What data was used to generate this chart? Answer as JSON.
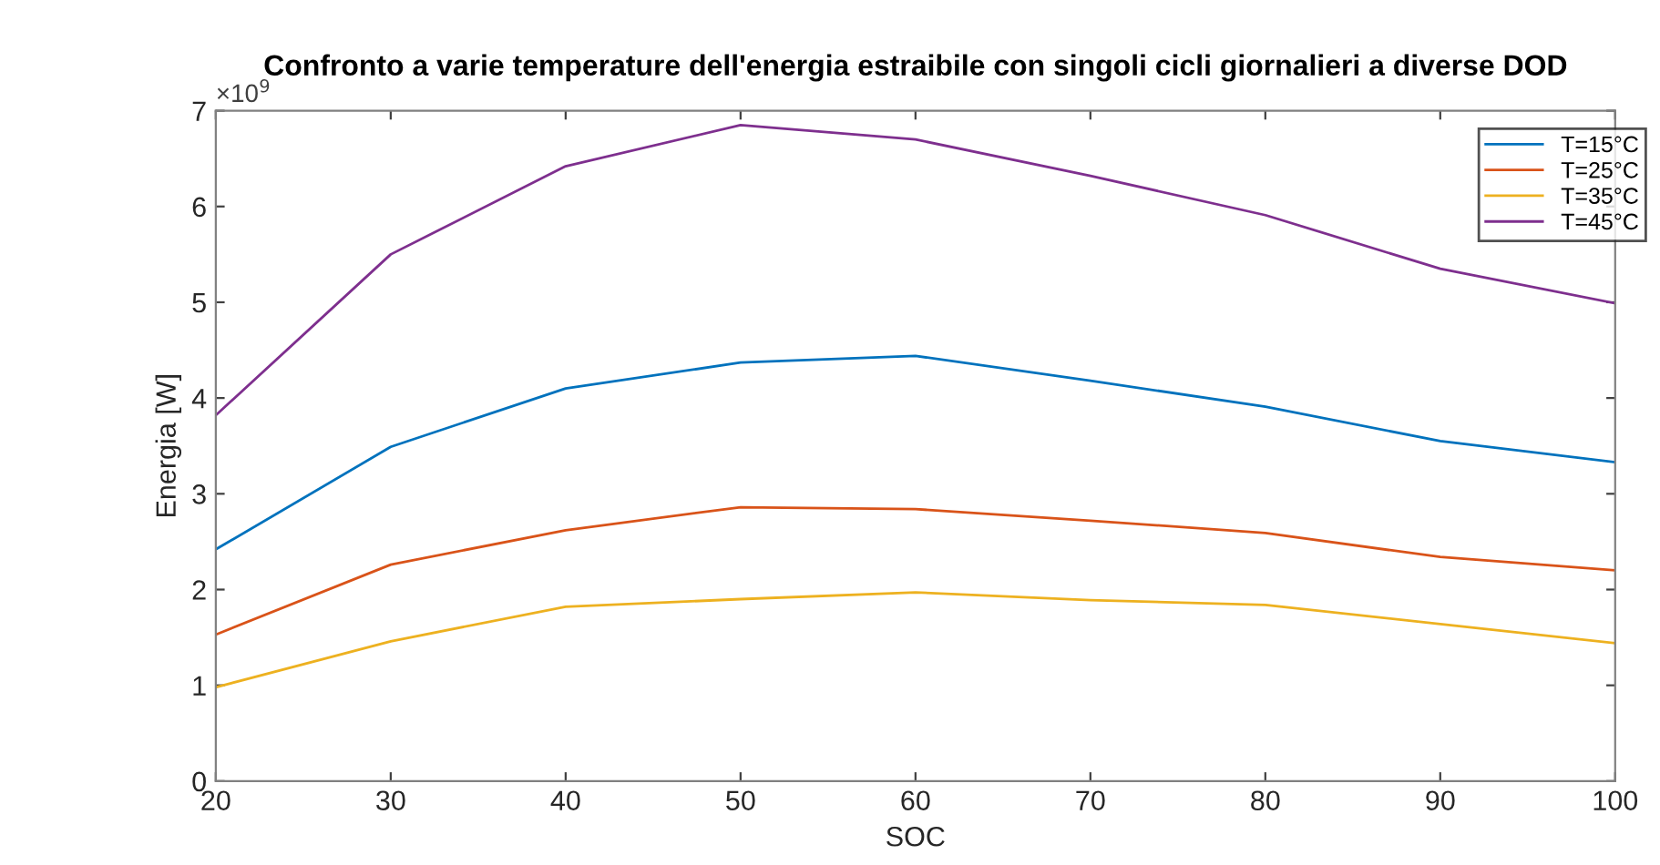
{
  "chart_data": {
    "type": "line",
    "title": "Confronto a varie temperature dell'energia estraibile con singoli cicli giornalieri a diverse DOD",
    "xlabel": "SOC",
    "ylabel": "Energia [W]",
    "annotations": [
      "×10$^{9}$"
    ],
    "x": [
      20,
      30,
      40,
      50,
      60,
      70,
      80,
      90,
      100
    ],
    "series": [
      {
        "name": "T=15°C",
        "color": "#0072bd",
        "values": [
          2.42,
          3.49,
          4.1,
          4.37,
          4.44,
          4.18,
          3.91,
          3.55,
          3.33
        ]
      },
      {
        "name": "T=25°C",
        "color": "#d95319",
        "values": [
          1.53,
          2.26,
          2.62,
          2.86,
          2.84,
          2.72,
          2.59,
          2.34,
          2.2
        ]
      },
      {
        "name": "T=35°C",
        "color": "#edb120",
        "values": [
          0.98,
          1.46,
          1.82,
          1.9,
          1.97,
          1.89,
          1.84,
          1.64,
          1.44
        ]
      },
      {
        "name": "T=45°C",
        "color": "#7e2f8e",
        "values": [
          3.82,
          5.5,
          6.42,
          6.85,
          6.7,
          6.32,
          5.91,
          5.35,
          4.99
        ]
      }
    ],
    "xlim": [
      20,
      100
    ],
    "xticks": [
      20,
      30,
      40,
      50,
      60,
      70,
      80,
      90,
      100
    ],
    "ylim": [
      0,
      7
    ],
    "yticks": [
      0,
      1,
      2,
      3,
      4,
      5,
      6,
      7
    ],
    "grid": false,
    "legend": "top right",
    "marker": "none",
    "line_style": "solid"
  }
}
